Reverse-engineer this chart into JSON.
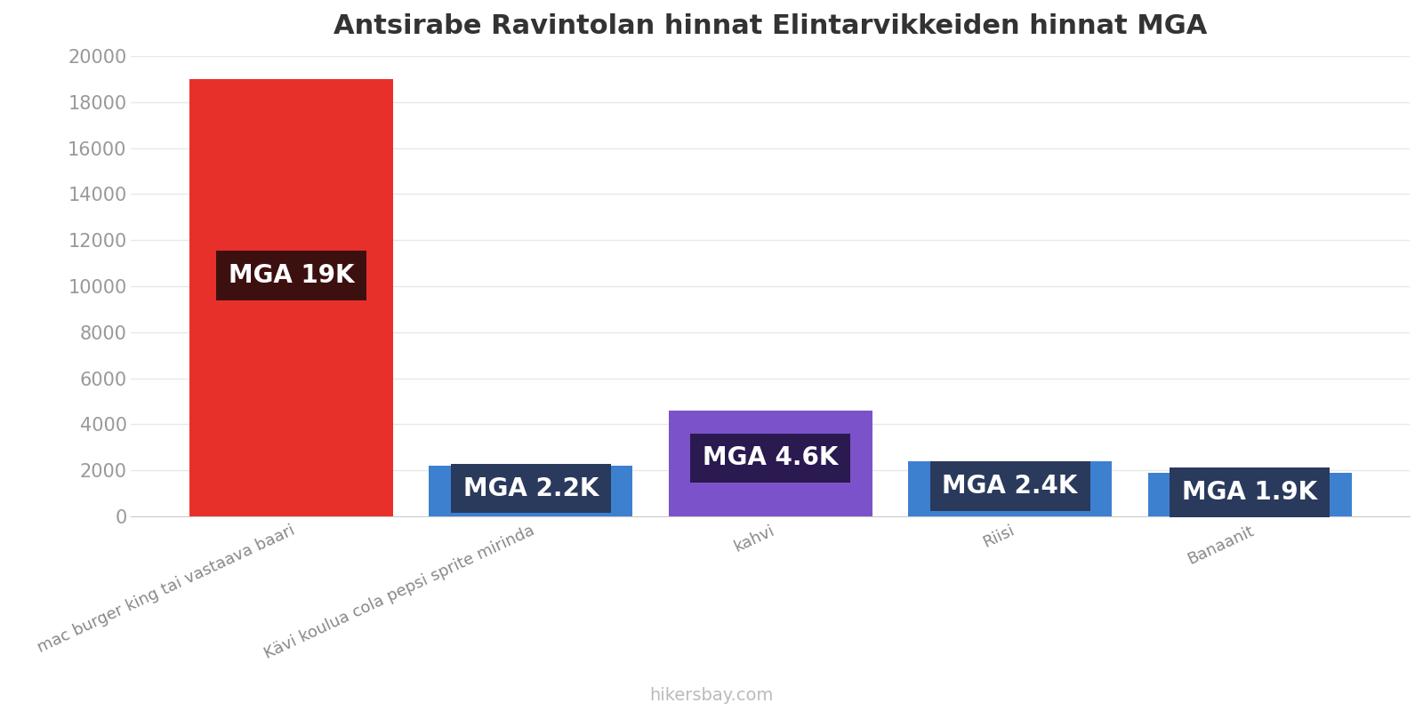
{
  "title": "Antsirabe Ravintolan hinnat Elintarvikkeiden hinnat MGA",
  "categories": [
    "mac burger king tai vastaava baari",
    "Kävi koulua cola pepsi sprite mirinda",
    "kahvi",
    "Riisi",
    "Banaanit"
  ],
  "values": [
    19000,
    2200,
    4600,
    2400,
    1900
  ],
  "bar_colors": [
    "#e8302a",
    "#3d80d0",
    "#7b52c9",
    "#3d80d0",
    "#3d80d0"
  ],
  "label_texts": [
    "MGA 19K",
    "MGA 2.2K",
    "MGA 4.6K",
    "MGA 2.4K",
    "MGA 1.9K"
  ],
  "label_box_colors": [
    "#3d1010",
    "#2a3a5c",
    "#2a1a50",
    "#2a3a5c",
    "#2a3a5c"
  ],
  "ylim": [
    0,
    20000
  ],
  "yticks": [
    0,
    2000,
    4000,
    6000,
    8000,
    10000,
    12000,
    14000,
    16000,
    18000,
    20000
  ],
  "watermark": "hikersbay.com",
  "title_fontsize": 22,
  "label_fontsize": 20,
  "tick_fontsize": 15,
  "watermark_fontsize": 14,
  "background_color": "#ffffff",
  "grid_color": "#e8e8e8"
}
